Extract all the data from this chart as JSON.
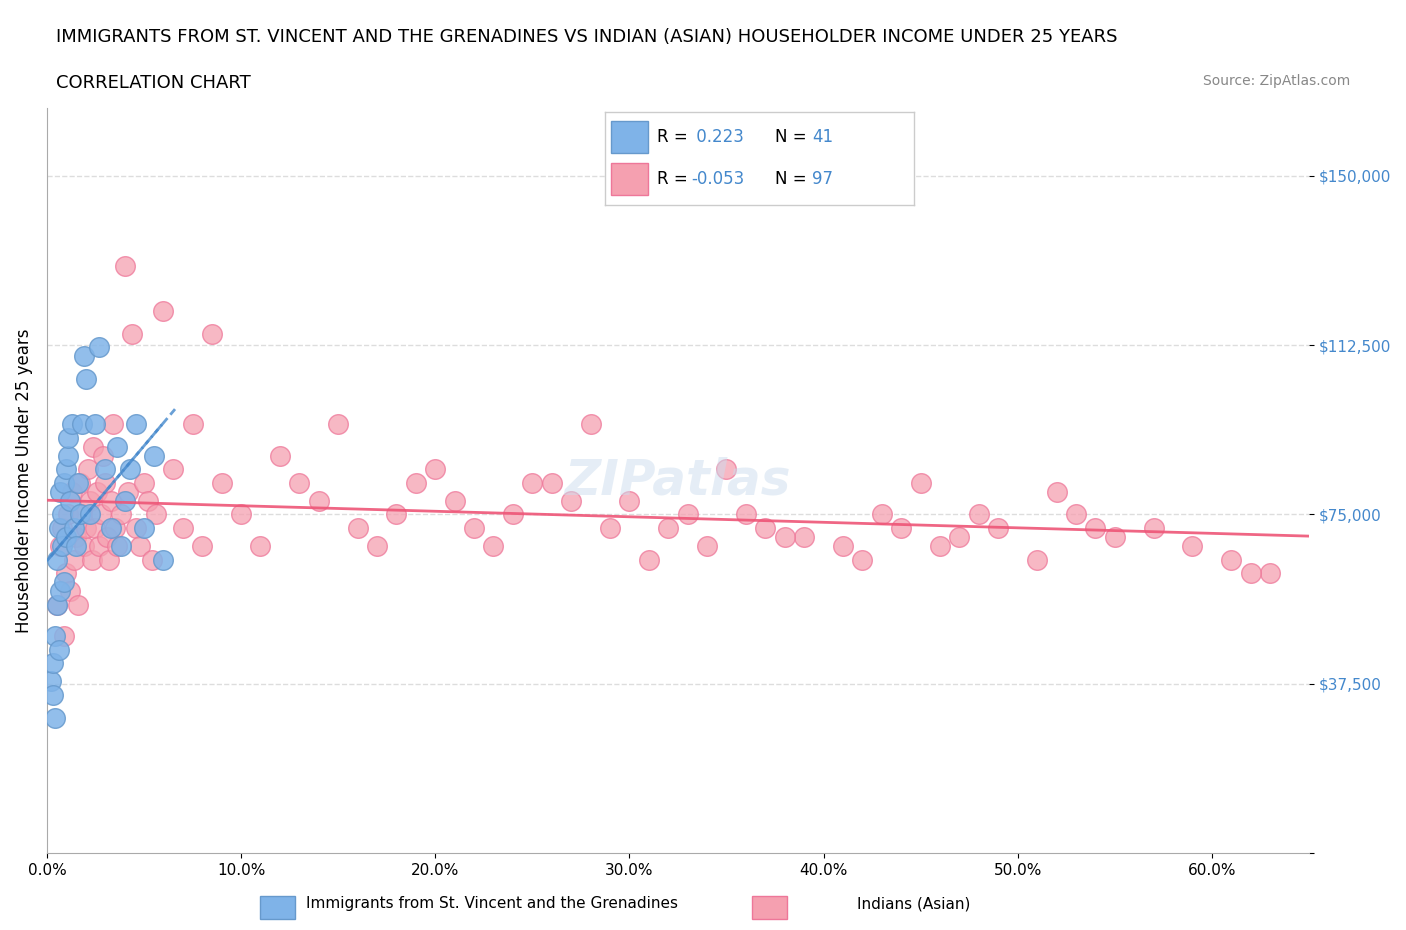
{
  "title": "IMMIGRANTS FROM ST. VINCENT AND THE GRENADINES VS INDIAN (ASIAN) HOUSEHOLDER INCOME UNDER 25 YEARS",
  "subtitle": "CORRELATION CHART",
  "source": "Source: ZipAtlas.com",
  "xlabel": "",
  "ylabel": "Householder Income Under 25 years",
  "xlim": [
    0.0,
    0.65
  ],
  "ylim": [
    0,
    165000
  ],
  "yticks": [
    0,
    37500,
    75000,
    112500,
    150000
  ],
  "ytick_labels": [
    "",
    "$37,500",
    "$75,000",
    "$112,500",
    "$150,000"
  ],
  "xticks": [
    0.0,
    0.1,
    0.2,
    0.3,
    0.4,
    0.5,
    0.6
  ],
  "xtick_labels": [
    "0.0%",
    "10.0%",
    "20.0%",
    "30.0%",
    "40.0%",
    "50.0%",
    "60.0%"
  ],
  "blue_color": "#7fb3e8",
  "pink_color": "#f5a0b0",
  "blue_edge": "#6699cc",
  "pink_edge": "#ee7799",
  "trend_blue": "#4488cc",
  "trend_pink": "#ee5577",
  "R_blue": 0.223,
  "N_blue": 41,
  "R_pink": -0.053,
  "N_pink": 97,
  "legend_R_color": "#333333",
  "legend_N_color": "#4488cc",
  "watermark": "ZIPatlas",
  "grid_color": "#dddddd",
  "blue_scatter_x": [
    0.002,
    0.003,
    0.003,
    0.004,
    0.004,
    0.005,
    0.005,
    0.006,
    0.006,
    0.007,
    0.007,
    0.008,
    0.008,
    0.009,
    0.009,
    0.01,
    0.01,
    0.011,
    0.011,
    0.012,
    0.013,
    0.014,
    0.015,
    0.016,
    0.017,
    0.018,
    0.019,
    0.02,
    0.022,
    0.025,
    0.027,
    0.03,
    0.033,
    0.036,
    0.038,
    0.04,
    0.043,
    0.046,
    0.05,
    0.055,
    0.06
  ],
  "blue_scatter_y": [
    38000,
    42000,
    35000,
    48000,
    30000,
    55000,
    65000,
    72000,
    45000,
    80000,
    58000,
    68000,
    75000,
    82000,
    60000,
    70000,
    85000,
    88000,
    92000,
    78000,
    95000,
    72000,
    68000,
    82000,
    75000,
    95000,
    110000,
    105000,
    75000,
    95000,
    112000,
    85000,
    72000,
    90000,
    68000,
    78000,
    85000,
    95000,
    72000,
    88000,
    65000
  ],
  "pink_scatter_x": [
    0.005,
    0.007,
    0.008,
    0.009,
    0.01,
    0.011,
    0.012,
    0.013,
    0.014,
    0.015,
    0.016,
    0.017,
    0.018,
    0.019,
    0.02,
    0.021,
    0.022,
    0.023,
    0.024,
    0.025,
    0.026,
    0.027,
    0.028,
    0.029,
    0.03,
    0.031,
    0.032,
    0.033,
    0.034,
    0.035,
    0.036,
    0.038,
    0.04,
    0.042,
    0.044,
    0.046,
    0.048,
    0.05,
    0.052,
    0.054,
    0.056,
    0.06,
    0.065,
    0.07,
    0.075,
    0.08,
    0.085,
    0.09,
    0.1,
    0.11,
    0.12,
    0.13,
    0.14,
    0.15,
    0.16,
    0.17,
    0.18,
    0.19,
    0.2,
    0.21,
    0.22,
    0.23,
    0.24,
    0.25,
    0.27,
    0.29,
    0.31,
    0.33,
    0.35,
    0.37,
    0.39,
    0.41,
    0.43,
    0.45,
    0.47,
    0.49,
    0.51,
    0.53,
    0.55,
    0.57,
    0.59,
    0.61,
    0.63,
    0.3,
    0.32,
    0.28,
    0.26,
    0.34,
    0.36,
    0.38,
    0.42,
    0.44,
    0.46,
    0.48,
    0.52,
    0.54,
    0.62
  ],
  "pink_scatter_y": [
    55000,
    68000,
    72000,
    48000,
    62000,
    75000,
    58000,
    80000,
    65000,
    70000,
    55000,
    82000,
    75000,
    68000,
    72000,
    85000,
    78000,
    65000,
    90000,
    72000,
    80000,
    68000,
    75000,
    88000,
    82000,
    70000,
    65000,
    78000,
    95000,
    72000,
    68000,
    75000,
    130000,
    80000,
    115000,
    72000,
    68000,
    82000,
    78000,
    65000,
    75000,
    120000,
    85000,
    72000,
    95000,
    68000,
    115000,
    82000,
    75000,
    68000,
    88000,
    82000,
    78000,
    95000,
    72000,
    68000,
    75000,
    82000,
    85000,
    78000,
    72000,
    68000,
    75000,
    82000,
    78000,
    72000,
    65000,
    75000,
    85000,
    72000,
    70000,
    68000,
    75000,
    82000,
    70000,
    72000,
    65000,
    75000,
    70000,
    72000,
    68000,
    65000,
    62000,
    78000,
    72000,
    95000,
    82000,
    68000,
    75000,
    70000,
    65000,
    72000,
    68000,
    75000,
    80000,
    72000,
    62000
  ]
}
